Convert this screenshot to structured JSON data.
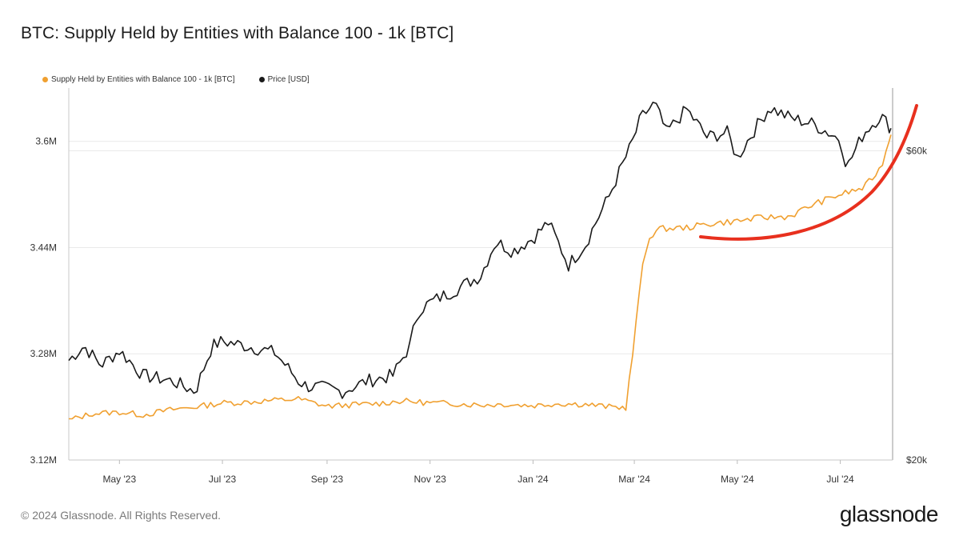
{
  "title": "BTC: Supply Held by Entities with Balance 100 - 1k [BTC]",
  "footer": {
    "copyright": "© 2024 Glassnode. All Rights Reserved.",
    "brand": "glassnode"
  },
  "colors": {
    "supply": "#f0a030",
    "price": "#1a1a1a",
    "highlight": "#e8301e",
    "grid": "#e9e9e9"
  },
  "chart_data": {
    "type": "line",
    "legend_placement": "top-left",
    "grid": true,
    "legend": [
      {
        "label": "Supply Held by Entities with Balance 100 - 1k [BTC]",
        "color": "#f0a030"
      },
      {
        "label": "Price [USD]",
        "color": "#1a1a1a"
      }
    ],
    "x_ticks": [
      "May '23",
      "Jul '23",
      "Sep '23",
      "Nov '23",
      "Jan '24",
      "Mar '24",
      "May '24",
      "Jul '24"
    ],
    "x_range": [
      "2023-04-01",
      "2024-08-01"
    ],
    "y_left": {
      "ticks": [
        "3.12M",
        "3.28M",
        "3.44M",
        "3.6M"
      ],
      "tick_values": [
        3.12,
        3.28,
        3.44,
        3.6
      ],
      "range": [
        3.12,
        3.6804
      ]
    },
    "y_right": {
      "ticks": [
        "$20k",
        "$60k"
      ],
      "tick_values": [
        20000,
        60000
      ],
      "scale": "log",
      "range": [
        20000,
        75000
      ]
    },
    "series": [
      {
        "name": "Supply Held by Entities with Balance 100 - 1k [BTC]",
        "axis": "left",
        "unit": "M BTC",
        "x": [
          "2023-04-01",
          "2023-04-15",
          "2023-05-01",
          "2023-05-15",
          "2023-06-01",
          "2023-06-15",
          "2023-07-01",
          "2023-07-15",
          "2023-08-01",
          "2023-08-15",
          "2023-09-01",
          "2023-09-15",
          "2023-10-01",
          "2023-10-15",
          "2023-11-01",
          "2023-11-15",
          "2023-12-01",
          "2023-12-15",
          "2024-01-01",
          "2024-01-15",
          "2024-02-01",
          "2024-02-15",
          "2024-02-25",
          "2024-03-01",
          "2024-03-05",
          "2024-03-10",
          "2024-03-15",
          "2024-04-01",
          "2024-04-15",
          "2024-05-01",
          "2024-05-15",
          "2024-06-01",
          "2024-06-15",
          "2024-07-01",
          "2024-07-15",
          "2024-07-25",
          "2024-07-31"
        ],
        "values": [
          3.18,
          3.19,
          3.192,
          3.188,
          3.196,
          3.2,
          3.206,
          3.207,
          3.21,
          3.212,
          3.201,
          3.203,
          3.205,
          3.209,
          3.206,
          3.205,
          3.203,
          3.204,
          3.202,
          3.205,
          3.204,
          3.2,
          3.199,
          3.3,
          3.4,
          3.456,
          3.468,
          3.47,
          3.476,
          3.48,
          3.485,
          3.487,
          3.505,
          3.52,
          3.53,
          3.56,
          3.61
        ]
      },
      {
        "name": "Price [USD]",
        "axis": "right",
        "unit": "USD",
        "x": [
          "2023-04-01",
          "2023-04-10",
          "2023-04-20",
          "2023-05-01",
          "2023-05-15",
          "2023-06-01",
          "2023-06-15",
          "2023-06-25",
          "2023-07-01",
          "2023-07-15",
          "2023-08-01",
          "2023-08-15",
          "2023-08-20",
          "2023-09-01",
          "2023-09-10",
          "2023-09-25",
          "2023-10-10",
          "2023-10-20",
          "2023-10-25",
          "2023-11-01",
          "2023-11-15",
          "2023-12-01",
          "2023-12-10",
          "2023-12-20",
          "2024-01-01",
          "2024-01-10",
          "2024-01-22",
          "2024-02-01",
          "2024-02-15",
          "2024-02-28",
          "2024-03-05",
          "2024-03-13",
          "2024-03-20",
          "2024-04-01",
          "2024-04-13",
          "2024-04-25",
          "2024-05-01",
          "2024-05-20",
          "2024-06-01",
          "2024-06-15",
          "2024-07-01",
          "2024-07-05",
          "2024-07-15",
          "2024-07-25",
          "2024-07-31"
        ],
        "values": [
          28500,
          30000,
          28000,
          29500,
          27000,
          26500,
          25500,
          30000,
          30500,
          30000,
          29300,
          26500,
          26000,
          25800,
          25500,
          26500,
          27000,
          30000,
          34000,
          35000,
          36500,
          38500,
          43500,
          42000,
          44000,
          46500,
          40000,
          43000,
          51000,
          61000,
          67500,
          71000,
          64000,
          69500,
          63000,
          64000,
          58500,
          70000,
          67500,
          66000,
          62500,
          56500,
          64000,
          68000,
          65000
        ]
      }
    ]
  }
}
